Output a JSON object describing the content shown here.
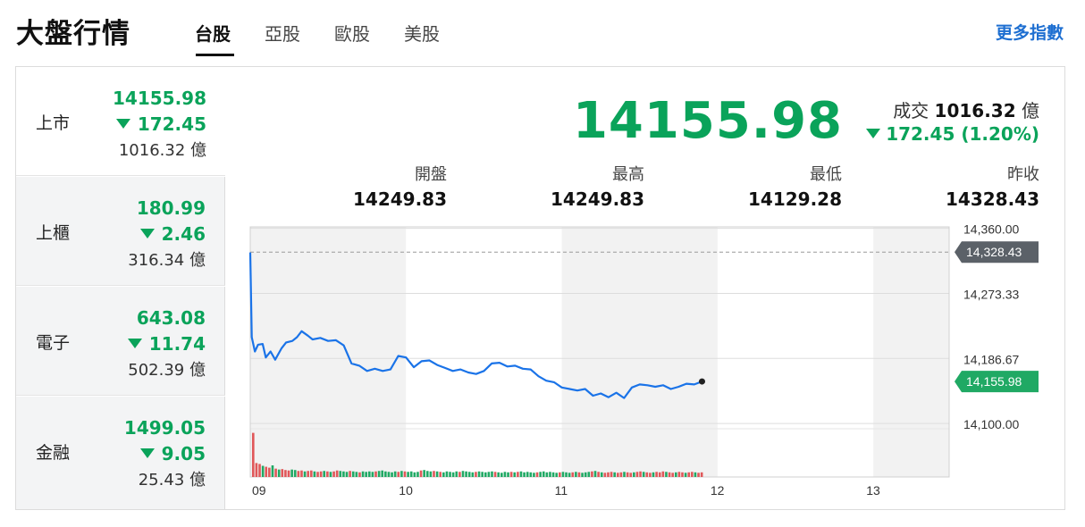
{
  "header": {
    "title": "大盤行情",
    "tabs": [
      "台股",
      "亞股",
      "歐股",
      "美股"
    ],
    "active_tab": "台股",
    "more_link": "更多指數"
  },
  "index_list": [
    {
      "name": "上市",
      "price": "14155.98",
      "change": "172.45",
      "volume": "1016.32 億"
    },
    {
      "name": "上櫃",
      "price": "180.99",
      "change": "2.46",
      "volume": "316.34 億"
    },
    {
      "name": "電子",
      "price": "643.08",
      "change": "11.74",
      "volume": "502.39 億"
    },
    {
      "name": "金融",
      "price": "1499.05",
      "change": "9.05",
      "volume": "25.43 億"
    }
  ],
  "summary": {
    "price": "14155.98",
    "turnover_label": "成交",
    "turnover_value": "1016.32",
    "turnover_unit": "億",
    "change": "172.45 (1.20%)",
    "stats": [
      {
        "label": "開盤",
        "value": "14249.83"
      },
      {
        "label": "最高",
        "value": "14249.83"
      },
      {
        "label": "最低",
        "value": "14129.28"
      },
      {
        "label": "昨收",
        "value": "14328.43"
      }
    ]
  },
  "colors": {
    "down": "#0aa35a",
    "line": "#1a73e8",
    "up_volume": "#e0585a",
    "down_volume": "#20a964",
    "prev_close_tag": "#5b6168",
    "link": "#1e6fd1"
  },
  "chart_data": {
    "type": "line",
    "x_ticks": [
      "09",
      "10",
      "11",
      "12",
      "13"
    ],
    "y_ticks": [
      "14,360.00",
      "14,273.33",
      "14,186.67",
      "14,100.00"
    ],
    "ylim": [
      14093,
      14362
    ],
    "x_range_hours": [
      9,
      13.5
    ],
    "prev_close": 14328.43,
    "prev_close_label": "14,328.43",
    "last_label": "14,155.98",
    "series": [
      {
        "values": [
          [
            9.0,
            14328
          ],
          [
            9.01,
            14215
          ],
          [
            9.03,
            14196
          ],
          [
            9.05,
            14205
          ],
          [
            9.08,
            14206
          ],
          [
            9.1,
            14188
          ],
          [
            9.13,
            14196
          ],
          [
            9.16,
            14185
          ],
          [
            9.2,
            14200
          ],
          [
            9.23,
            14208
          ],
          [
            9.27,
            14210
          ],
          [
            9.3,
            14215
          ],
          [
            9.33,
            14223
          ],
          [
            9.37,
            14217
          ],
          [
            9.4,
            14212
          ],
          [
            9.45,
            14214
          ],
          [
            9.5,
            14210
          ],
          [
            9.55,
            14211
          ],
          [
            9.6,
            14204
          ],
          [
            9.65,
            14180
          ],
          [
            9.7,
            14177
          ],
          [
            9.75,
            14170
          ],
          [
            9.8,
            14173
          ],
          [
            9.85,
            14170
          ],
          [
            9.9,
            14172
          ],
          [
            9.95,
            14190
          ],
          [
            10.0,
            14188
          ],
          [
            10.05,
            14175
          ],
          [
            10.1,
            14183
          ],
          [
            10.15,
            14184
          ],
          [
            10.2,
            14178
          ],
          [
            10.25,
            14174
          ],
          [
            10.3,
            14170
          ],
          [
            10.35,
            14172
          ],
          [
            10.4,
            14168
          ],
          [
            10.45,
            14166
          ],
          [
            10.5,
            14170
          ],
          [
            10.55,
            14180
          ],
          [
            10.6,
            14181
          ],
          [
            10.65,
            14176
          ],
          [
            10.7,
            14177
          ],
          [
            10.75,
            14173
          ],
          [
            10.8,
            14172
          ],
          [
            10.85,
            14163
          ],
          [
            10.9,
            14157
          ],
          [
            10.95,
            14155
          ],
          [
            11.0,
            14148
          ],
          [
            11.05,
            14146
          ],
          [
            11.1,
            14144
          ],
          [
            11.15,
            14146
          ],
          [
            11.2,
            14137
          ],
          [
            11.25,
            14140
          ],
          [
            11.3,
            14135
          ],
          [
            11.35,
            14141
          ],
          [
            11.4,
            14134
          ],
          [
            11.45,
            14148
          ],
          [
            11.5,
            14152
          ],
          [
            11.55,
            14151
          ],
          [
            11.6,
            14149
          ],
          [
            11.65,
            14151
          ],
          [
            11.7,
            14146
          ],
          [
            11.75,
            14149
          ],
          [
            11.8,
            14153
          ],
          [
            11.85,
            14152
          ],
          [
            11.9,
            14156
          ]
        ]
      }
    ],
    "volume_ylim": [
      0,
      100
    ],
    "volume": {
      "note": "relative bar heights per minute",
      "values": [
        95,
        30,
        28,
        24,
        22,
        20,
        25,
        18,
        16,
        17,
        15,
        14,
        16,
        15,
        13,
        14,
        12,
        13,
        14,
        12,
        11,
        12,
        13,
        12,
        11,
        12,
        14,
        13,
        12,
        11,
        13,
        12,
        11,
        10,
        12,
        11,
        12,
        11,
        12,
        13,
        14,
        12,
        11,
        10,
        12,
        11,
        13,
        12,
        11,
        12,
        10,
        11,
        14,
        15,
        13,
        12,
        13,
        12,
        11,
        10,
        12,
        11,
        10,
        12,
        11,
        13,
        12,
        11,
        10,
        11,
        12,
        11,
        10,
        11,
        12,
        11,
        10,
        9,
        11,
        10,
        11,
        10,
        11,
        12,
        10,
        11,
        10,
        9,
        10,
        11,
        12,
        10,
        11,
        10,
        9,
        10,
        11,
        10,
        9,
        10,
        11,
        10,
        9,
        10,
        11,
        12,
        13,
        11,
        10,
        9,
        10,
        11,
        10,
        9,
        10,
        11,
        10,
        9,
        10,
        11,
        12,
        11,
        10,
        9,
        10,
        11,
        10,
        12,
        11,
        10,
        9,
        10,
        11,
        10,
        9,
        10,
        11,
        10,
        9,
        10
      ],
      "up_flags": [
        1,
        1,
        1,
        0,
        1,
        1,
        0,
        1,
        0,
        1,
        1,
        1,
        0,
        0,
        1,
        1,
        0,
        1,
        1,
        0,
        1,
        1,
        0,
        1,
        0,
        1,
        1,
        0,
        0,
        0,
        1,
        0,
        0,
        1,
        0,
        0,
        0,
        0,
        1,
        0,
        0,
        0,
        0,
        0,
        0,
        1,
        0,
        1,
        0,
        0,
        0,
        0,
        1,
        0,
        0,
        0,
        1,
        0,
        1,
        0,
        0,
        0,
        0,
        0,
        1,
        0,
        0,
        0,
        0,
        1,
        0,
        0,
        0,
        0,
        0,
        1,
        0,
        0,
        0,
        0,
        1,
        0,
        1,
        0,
        0,
        0,
        0,
        0,
        1,
        0,
        0,
        0,
        0,
        0,
        0,
        1,
        0,
        0,
        0,
        1,
        0,
        1,
        0,
        0,
        0,
        1,
        0,
        1,
        0,
        1,
        1,
        1,
        0,
        1,
        1,
        0,
        1,
        1,
        0,
        1,
        1,
        0,
        1,
        1,
        0,
        1,
        1,
        1,
        0,
        1,
        1,
        0,
        1,
        1,
        0,
        1,
        1,
        0,
        1,
        1
      ]
    }
  }
}
